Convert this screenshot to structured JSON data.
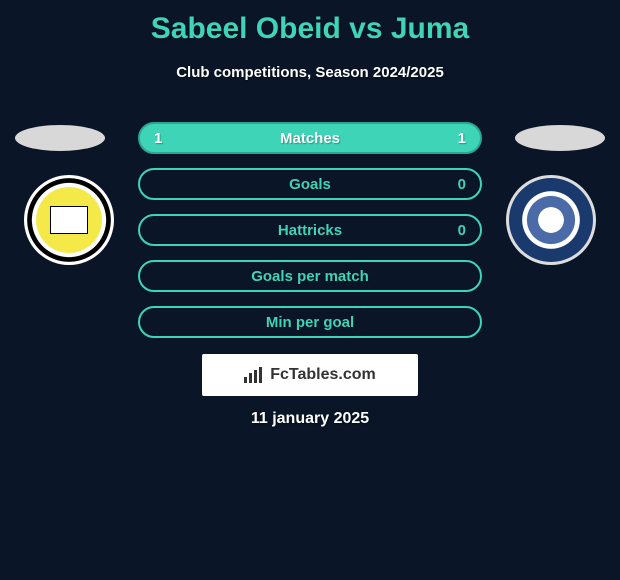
{
  "title": "Sabeel Obeid vs Juma",
  "subtitle": "Club competitions, Season 2024/2025",
  "date": "11 january 2025",
  "watermark": "FcTables.com",
  "colors": {
    "background": "#0a1628",
    "title": "#3dd4b8",
    "text": "#ffffff",
    "bar_filled_bg": "#3dd4b8",
    "bar_filled_border": "#2aa890",
    "bar_filled_text": "#ffffff",
    "bar_empty_bg": "transparent",
    "bar_empty_border": "#3dd4b8",
    "bar_empty_text": "#3dd4b8"
  },
  "bars": [
    {
      "label": "Matches",
      "left": "1",
      "right": "1",
      "filled": true
    },
    {
      "label": "Goals",
      "left": "",
      "right": "0",
      "filled": false
    },
    {
      "label": "Hattricks",
      "left": "",
      "right": "0",
      "filled": false
    },
    {
      "label": "Goals per match",
      "left": "",
      "right": "",
      "filled": false
    },
    {
      "label": "Min per goal",
      "left": "",
      "right": "",
      "filled": false
    }
  ]
}
